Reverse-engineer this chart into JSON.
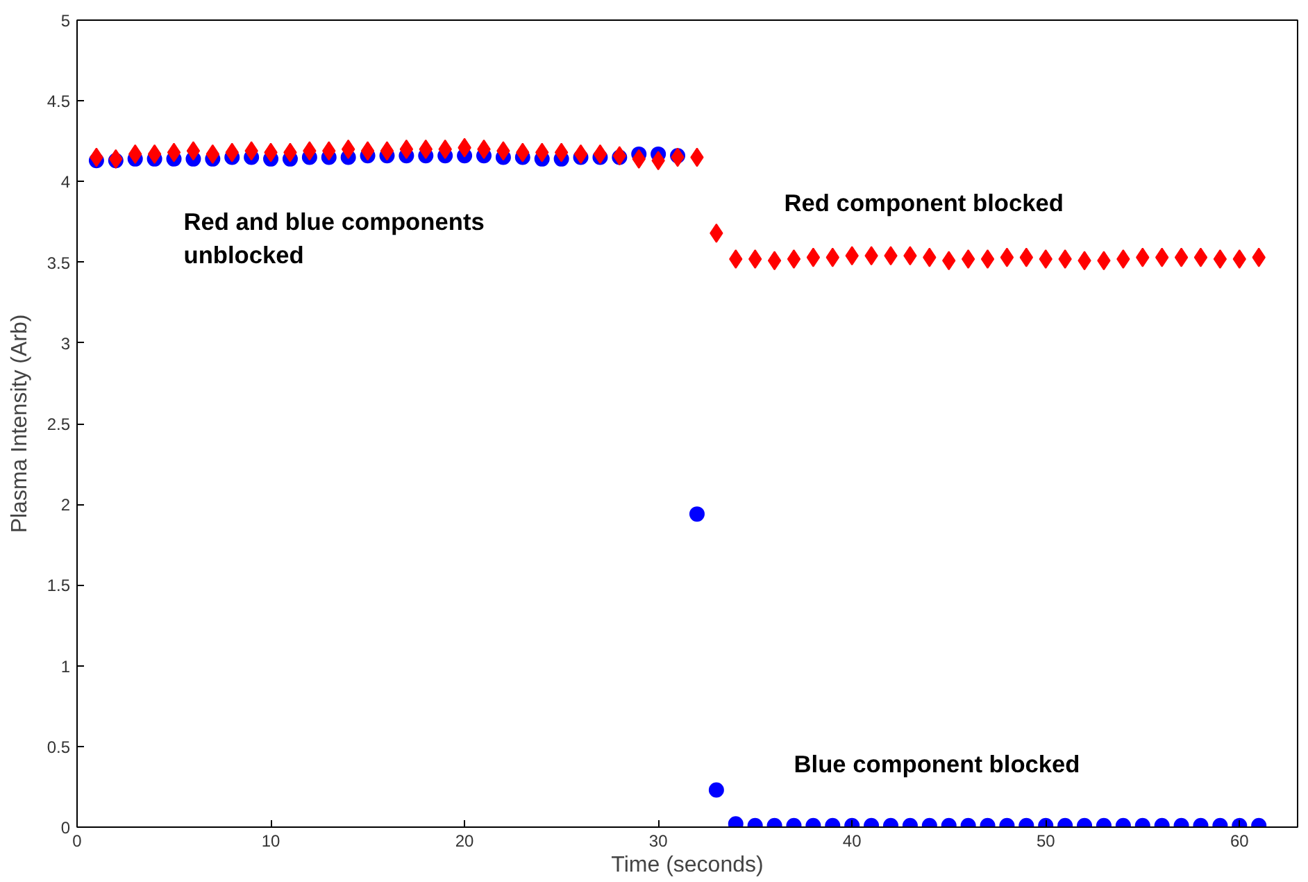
{
  "chart_data": {
    "type": "scatter",
    "xlabel": "Time (seconds)",
    "ylabel": "Plasma Intensity (Arb)",
    "xlim": [
      0,
      63
    ],
    "ylim": [
      0,
      5
    ],
    "xticks": [
      0,
      10,
      20,
      30,
      40,
      50,
      60
    ],
    "yticks": [
      0,
      0.5,
      1,
      1.5,
      2,
      2.5,
      3,
      3.5,
      4,
      4.5,
      5
    ],
    "grid": false,
    "annotations": [
      "Red and blue components\nunblocked",
      "Red component blocked",
      "Blue component blocked"
    ],
    "x": [
      1,
      2,
      3,
      4,
      5,
      6,
      7,
      8,
      9,
      10,
      11,
      12,
      13,
      14,
      15,
      16,
      17,
      18,
      19,
      20,
      21,
      22,
      23,
      24,
      25,
      26,
      27,
      28,
      29,
      30,
      31,
      32,
      33,
      34,
      35,
      36,
      37,
      38,
      39,
      40,
      41,
      42,
      43,
      44,
      45,
      46,
      47,
      48,
      49,
      50,
      51,
      52,
      53,
      54,
      55,
      56,
      57,
      58,
      59,
      60,
      61
    ],
    "series": [
      {
        "color": "#0000ff",
        "marker": "circle",
        "values": [
          4.13,
          4.13,
          4.14,
          4.14,
          4.14,
          4.14,
          4.14,
          4.15,
          4.15,
          4.14,
          4.14,
          4.15,
          4.15,
          4.15,
          4.16,
          4.16,
          4.16,
          4.16,
          4.16,
          4.16,
          4.16,
          4.15,
          4.15,
          4.14,
          4.14,
          4.15,
          4.15,
          4.15,
          4.17,
          4.17,
          4.16,
          1.94,
          0.23,
          0.02,
          0.01,
          0.01,
          0.01,
          0.01,
          0.01,
          0.01,
          0.01,
          0.01,
          0.01,
          0.01,
          0.01,
          0.01,
          0.01,
          0.01,
          0.01,
          0.01,
          0.01,
          0.01,
          0.01,
          0.01,
          0.01,
          0.01,
          0.01,
          0.01,
          0.01,
          0.01,
          0.01
        ]
      },
      {
        "color": "#ff0000",
        "marker": "diamond",
        "values": [
          4.15,
          4.14,
          4.17,
          4.17,
          4.18,
          4.19,
          4.17,
          4.18,
          4.19,
          4.18,
          4.18,
          4.19,
          4.19,
          4.2,
          4.19,
          4.19,
          4.2,
          4.2,
          4.2,
          4.21,
          4.2,
          4.19,
          4.18,
          4.18,
          4.18,
          4.17,
          4.17,
          4.16,
          4.14,
          4.13,
          4.15,
          4.15,
          3.68,
          3.52,
          3.52,
          3.51,
          3.52,
          3.53,
          3.53,
          3.54,
          3.54,
          3.54,
          3.54,
          3.53,
          3.51,
          3.52,
          3.52,
          3.53,
          3.53,
          3.52,
          3.52,
          3.51,
          3.51,
          3.52,
          3.53,
          3.53,
          3.53,
          3.53,
          3.52,
          3.52,
          3.53
        ]
      }
    ]
  }
}
